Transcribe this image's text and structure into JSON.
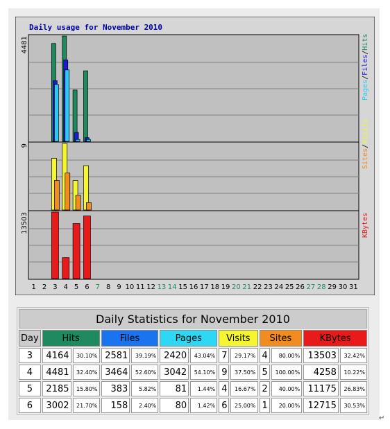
{
  "chart_data": {
    "type": "bar",
    "title": "Daily usage for November 2010",
    "days": [
      "1",
      "2",
      "3",
      "4",
      "5",
      "6",
      "7",
      "8",
      "9",
      "10",
      "11",
      "12",
      "13",
      "14",
      "15",
      "16",
      "17",
      "18",
      "19",
      "20",
      "21",
      "22",
      "23",
      "24",
      "25",
      "26",
      "27",
      "28",
      "29",
      "30",
      "31"
    ],
    "weekend_days": [
      "7",
      "13",
      "14",
      "20",
      "21",
      "27",
      "28"
    ],
    "panels": {
      "top": {
        "scale_label": "4481",
        "scale_max": 4481,
        "right_label": [
          "Pages",
          "Files",
          "Hits"
        ],
        "series": [
          {
            "key": "hits",
            "color": "#1e8a5e",
            "values": {
              "3": 4164,
              "4": 4481,
              "5": 2185,
              "6": 3002
            }
          },
          {
            "key": "files",
            "color": "#1a1adc",
            "values": {
              "3": 2581,
              "4": 3464,
              "5": 383,
              "6": 158
            }
          },
          {
            "key": "pages",
            "color": "#2ec8f5",
            "values": {
              "3": 2420,
              "4": 3042,
              "5": 81,
              "6": 80
            }
          }
        ]
      },
      "mid": {
        "scale_label": "9",
        "scale_max": 9,
        "right_label": [
          "Sites",
          "Visits"
        ],
        "series": [
          {
            "key": "visits",
            "color": "#f5f530",
            "values": {
              "3": 7,
              "4": 9,
              "5": 4,
              "6": 6
            }
          },
          {
            "key": "sites",
            "color": "#f08c20",
            "values": {
              "3": 4,
              "4": 5,
              "5": 2,
              "6": 1
            }
          }
        ]
      },
      "bot": {
        "scale_label": "13503",
        "scale_max": 13503,
        "right_label": [
          "KBytes"
        ],
        "series": [
          {
            "key": "kbytes",
            "color": "#e81a1a",
            "values": {
              "3": 13503,
              "4": 4258,
              "5": 11175,
              "6": 12715
            }
          }
        ]
      }
    },
    "grid": true
  },
  "table": {
    "caption": "Daily Statistics for November 2010",
    "headers": [
      {
        "label": "Day",
        "bg": "#cccccc",
        "color": "#000000"
      },
      {
        "label": "Hits",
        "bg": "#1e8a5e",
        "color": "#000000"
      },
      {
        "label": "Files",
        "bg": "#1a74f0",
        "color": "#000000"
      },
      {
        "label": "Pages",
        "bg": "#2ed8f5",
        "color": "#000000"
      },
      {
        "label": "Visits",
        "bg": "#f5f530",
        "color": "#000000"
      },
      {
        "label": "Sites",
        "bg": "#f08c20",
        "color": "#000000"
      },
      {
        "label": "KBytes",
        "bg": "#e81a1a",
        "color": "#000000"
      }
    ],
    "rows": [
      {
        "day": "3",
        "hits": "4164",
        "hits_pct": "30.10%",
        "files": "2581",
        "files_pct": "39.19%",
        "pages": "2420",
        "pages_pct": "43.04%",
        "visits": "7",
        "visits_pct": "29.17%",
        "sites": "4",
        "sites_pct": "80.00%",
        "kbytes": "13503",
        "kbytes_pct": "32.42%"
      },
      {
        "day": "4",
        "hits": "4481",
        "hits_pct": "32.40%",
        "files": "3464",
        "files_pct": "52.60%",
        "pages": "3042",
        "pages_pct": "54.10%",
        "visits": "9",
        "visits_pct": "37.50%",
        "sites": "5",
        "sites_pct": "100.00%",
        "kbytes": "4258",
        "kbytes_pct": "10.22%"
      },
      {
        "day": "5",
        "hits": "2185",
        "hits_pct": "15.80%",
        "files": "383",
        "files_pct": "5.82%",
        "pages": "81",
        "pages_pct": "1.44%",
        "visits": "4",
        "visits_pct": "16.67%",
        "sites": "2",
        "sites_pct": "40.00%",
        "kbytes": "11175",
        "kbytes_pct": "26.83%"
      },
      {
        "day": "6",
        "hits": "3002",
        "hits_pct": "21.70%",
        "files": "158",
        "files_pct": "2.40%",
        "pages": "80",
        "pages_pct": "1.42%",
        "visits": "6",
        "visits_pct": "25.00%",
        "sites": "1",
        "sites_pct": "20.00%",
        "kbytes": "12715",
        "kbytes_pct": "30.53%"
      }
    ]
  },
  "end_mark": "↵"
}
